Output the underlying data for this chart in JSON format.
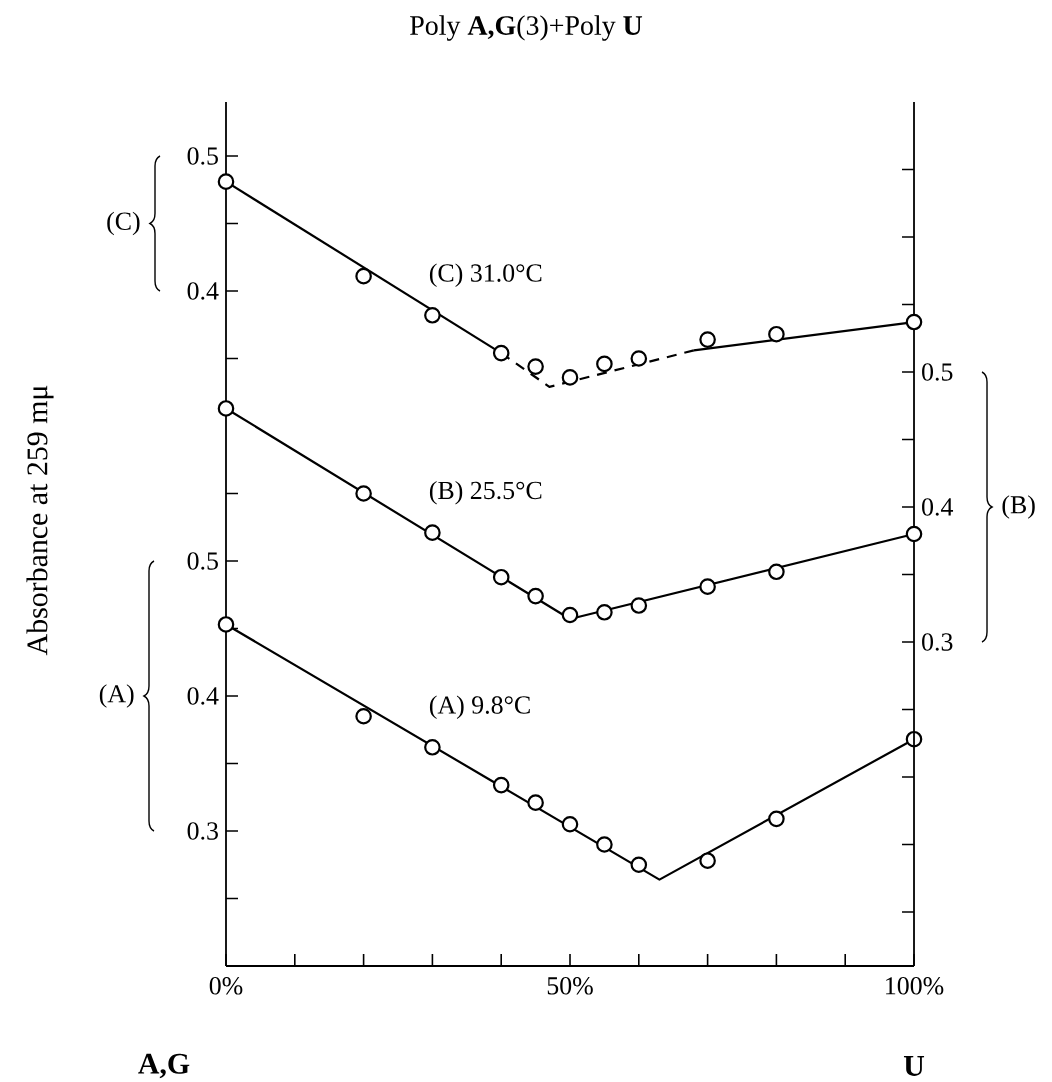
{
  "chart_data": {
    "type": "scatter",
    "title": "Poly **A,G**(3)+Poly **U**",
    "ylabel": "Absorbance at 259 mμ",
    "xlim": [
      0,
      100
    ],
    "xticks": [
      {
        "value": 0,
        "label": "0%"
      },
      {
        "value": 10,
        "label": null
      },
      {
        "value": 20,
        "label": null
      },
      {
        "value": 30,
        "label": null
      },
      {
        "value": 40,
        "label": null
      },
      {
        "value": 50,
        "label": "50%"
      },
      {
        "value": 60,
        "label": null
      },
      {
        "value": 70,
        "label": null
      },
      {
        "value": 80,
        "label": null
      },
      {
        "value": 90,
        "label": null
      },
      {
        "value": 100,
        "label": "100%"
      }
    ],
    "ylim": [
      0.2,
      0.84
    ],
    "yticks": [
      {
        "value": 0.25,
        "label": null
      },
      0.3,
      {
        "value": 0.35,
        "label": null
      },
      0.4,
      {
        "value": 0.45,
        "label": null
      },
      0.5,
      {
        "value": 0.55,
        "label": null
      }
    ],
    "y2lim": [
      0.06,
      0.7
    ],
    "y2ticks": [
      {
        "value": 0.1,
        "label": null
      },
      {
        "value": 0.15,
        "label": null
      },
      {
        "value": 0.2,
        "label": null
      },
      {
        "value": 0.25,
        "label": null
      },
      0.3,
      {
        "value": 0.35,
        "label": null
      },
      0.4,
      {
        "value": 0.45,
        "label": null
      },
      0.5,
      {
        "value": 0.55,
        "label": null
      },
      {
        "value": 0.6,
        "label": null
      },
      {
        "value": 0.65,
        "label": null
      }
    ],
    "y3lim": [
      -0.1,
      0.54
    ],
    "y3ticks": [
      {
        "value": 0.35,
        "label": null
      },
      0.4,
      {
        "value": 0.45,
        "label": null
      },
      0.5
    ],
    "annotations": [
      "(A)",
      "(B)",
      "(C)",
      "**A,G**",
      "**U**"
    ],
    "series": [
      {
        "name": "(A) 9.8°C",
        "axis": "y",
        "marker": "circle",
        "color": "#000000",
        "x": [
          0,
          20,
          30,
          40,
          45,
          50,
          55,
          60,
          70,
          80,
          100
        ],
        "values": [
          0.453,
          0.385,
          0.362,
          0.334,
          0.321,
          0.305,
          0.29,
          0.275,
          0.278,
          0.309,
          0.368
        ]
      },
      {
        "type": "line",
        "axis": "y",
        "marker": "none",
        "line_style": "solid",
        "color": "#000000",
        "x": [
          0,
          63,
          100
        ],
        "values": [
          0.453,
          0.264,
          0.368
        ]
      },
      {
        "name": "(B) 25.5°C",
        "axis": "y2",
        "marker": "circle",
        "color": "#000000",
        "x": [
          0,
          20,
          30,
          40,
          45,
          50,
          55,
          60,
          70,
          80,
          100
        ],
        "values": [
          0.473,
          0.41,
          0.381,
          0.348,
          0.334,
          0.32,
          0.322,
          0.327,
          0.341,
          0.352,
          0.38
        ]
      },
      {
        "type": "line",
        "axis": "y2",
        "marker": "none",
        "line_style": "solid",
        "color": "#000000",
        "x": [
          0,
          50,
          100
        ],
        "values": [
          0.473,
          0.317,
          0.38
        ]
      },
      {
        "name": "(C) 31.0°C",
        "axis": "y3",
        "marker": "circle",
        "color": "#000000",
        "x": [
          0,
          20,
          30,
          40,
          45,
          50,
          55,
          60,
          70,
          80,
          100
        ],
        "values": [
          0.481,
          0.411,
          0.382,
          0.354,
          0.344,
          0.336,
          0.346,
          0.35,
          0.364,
          0.368,
          0.377
        ]
      },
      {
        "type": "line",
        "axis": "y3",
        "marker": "none",
        "line_style": "solid",
        "color": "#000000",
        "x": [
          0,
          40
        ],
        "values": [
          0.481,
          0.354
        ]
      },
      {
        "type": "line",
        "axis": "y3",
        "marker": "none",
        "line_style": "dashed",
        "color": "#000000",
        "x": [
          40,
          47,
          68
        ],
        "values": [
          0.354,
          0.329,
          0.356
        ]
      },
      {
        "type": "line",
        "axis": "y3",
        "marker": "none",
        "line_style": "solid",
        "color": "#000000",
        "x": [
          68,
          100
        ],
        "values": [
          0.356,
          0.377
        ]
      }
    ]
  }
}
